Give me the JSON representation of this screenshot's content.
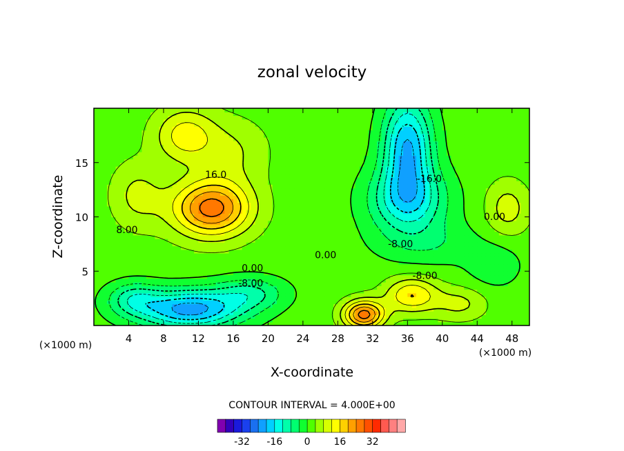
{
  "chart_data": {
    "type": "heatmap",
    "title": "zonal velocity",
    "xlabel": "X-coordinate",
    "ylabel": "Z-coordinate",
    "x_unit": "(×1000 m)",
    "x_unit_right": "(×1000 m)",
    "xlim": [
      0,
      50
    ],
    "ylim": [
      0,
      20
    ],
    "x_ticks": [
      4,
      8,
      12,
      16,
      20,
      24,
      28,
      32,
      36,
      40,
      44,
      48
    ],
    "y_ticks": [
      5,
      10,
      15
    ],
    "contour_interval_text": "CONTOUR INTERVAL = 4.000E+00",
    "contour_labels": [
      {
        "text": "16.0",
        "x": 14,
        "z": 13.6
      },
      {
        "text": "8.00",
        "x": 3.8,
        "z": 8.5
      },
      {
        "text": "0.00",
        "x": 18.2,
        "z": 5.0
      },
      {
        "text": "-8.00",
        "x": 18.0,
        "z": 3.6
      },
      {
        "text": "0.00",
        "x": 26.6,
        "z": 6.2
      },
      {
        "text": "-8.00",
        "x": 35.2,
        "z": 7.2
      },
      {
        "text": "-16.0",
        "x": 38.5,
        "z": 13.2
      },
      {
        "text": "-8.00",
        "x": 38.0,
        "z": 4.3
      },
      {
        "text": "0.00",
        "x": 46.0,
        "z": 9.7
      }
    ],
    "velocity_field": [
      {
        "x": 13.5,
        "z": 10.8,
        "value": 24,
        "sx": 4.5,
        "sz": 2.6
      },
      {
        "x": 10.5,
        "z": 17.5,
        "value": 12,
        "sx": 3.5,
        "sz": 2.5
      },
      {
        "x": 5.0,
        "z": 12.0,
        "value": 7,
        "sx": 3.0,
        "sz": 3.0
      },
      {
        "x": 16.0,
        "z": 16.0,
        "value": 6,
        "sx": 4.0,
        "sz": 3.0
      },
      {
        "x": 11.0,
        "z": 1.5,
        "value": -24,
        "sx": 6.0,
        "sz": 1.8
      },
      {
        "x": 18.0,
        "z": 3.0,
        "value": -10,
        "sx": 4.0,
        "sz": 1.5
      },
      {
        "x": 4.5,
        "z": 2.5,
        "value": -10,
        "sx": 3.0,
        "sz": 1.5
      },
      {
        "x": 36.0,
        "z": 16.5,
        "value": -22,
        "sx": 2.8,
        "sz": 4.5
      },
      {
        "x": 36.0,
        "z": 11.5,
        "value": -16,
        "sx": 4.5,
        "sz": 3.0
      },
      {
        "x": 38.5,
        "z": 7.5,
        "value": -5,
        "sx": 6.0,
        "sz": 2.0
      },
      {
        "x": 31.0,
        "z": 1.0,
        "value": 24,
        "sx": 2.3,
        "sz": 1.3
      },
      {
        "x": 36.5,
        "z": 2.8,
        "value": 14,
        "sx": 3.0,
        "sz": 1.6
      },
      {
        "x": 42.0,
        "z": 2.0,
        "value": 7,
        "sx": 3.0,
        "sz": 1.5
      },
      {
        "x": 47.5,
        "z": 10.8,
        "value": 8,
        "sx": 2.5,
        "sz": 2.5
      },
      {
        "x": 46.0,
        "z": 5.5,
        "value": -5,
        "sx": 3.0,
        "sz": 2.0
      }
    ],
    "colorbar": {
      "colors": [
        "#8000b0",
        "#3300bb",
        "#1a1adc",
        "#1a40ee",
        "#1a70f0",
        "#10a0ff",
        "#00d0ff",
        "#00ffe6",
        "#00ffaa",
        "#00ff70",
        "#10ff30",
        "#50ff00",
        "#a0ff00",
        "#d8ff00",
        "#ffff00",
        "#ffd000",
        "#ffa000",
        "#ff7800",
        "#ff5000",
        "#ff2a00",
        "#ff5a50",
        "#ff8080",
        "#ffa8a8"
      ],
      "min": -44,
      "max": 48,
      "step": 4,
      "tick_values": [
        -32,
        -16,
        0,
        16,
        32
      ],
      "tick_labels": [
        "-32",
        "-16",
        "0",
        "16",
        "32"
      ]
    }
  }
}
